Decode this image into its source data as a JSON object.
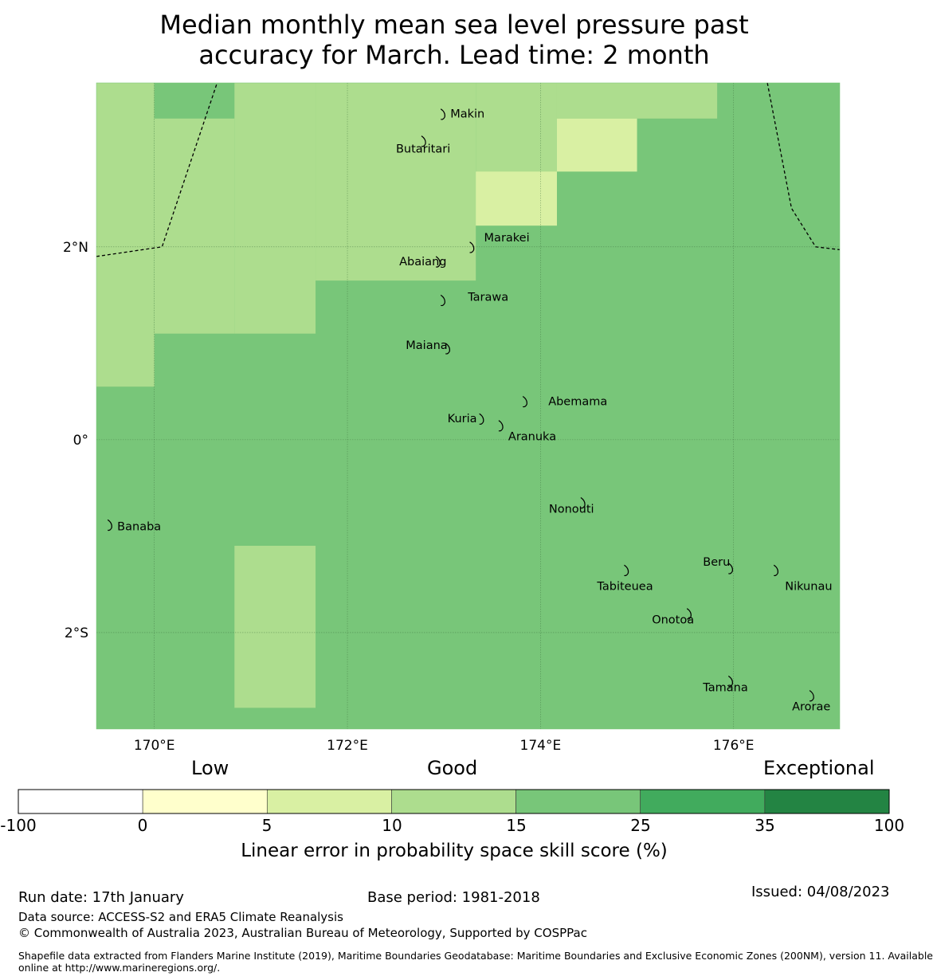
{
  "title_line1": "Median monthly mean sea level pressure past",
  "title_line2": "accuracy for March. Lead time: 2 month",
  "map": {
    "lon_range": [
      169.4,
      177.1
    ],
    "lat_range": [
      -3.0,
      3.7
    ],
    "grid_cell_size_deg": 0.833,
    "background_color": "#78c679",
    "lon_ticks": [
      {
        "value": 170,
        "label": "170°E"
      },
      {
        "value": 172,
        "label": "172°E"
      },
      {
        "value": 174,
        "label": "174°E"
      },
      {
        "value": 176,
        "label": "176°E"
      }
    ],
    "lat_ticks": [
      {
        "value": 2,
        "label": "2°N"
      },
      {
        "value": 0,
        "label": "0°"
      },
      {
        "value": -2,
        "label": "2°S"
      }
    ],
    "skill_cells": [
      {
        "lon": [
          169.4,
          170.0
        ],
        "lat": [
          0.55,
          3.7
        ],
        "category": "10-15",
        "color": "#addd8e"
      },
      {
        "lon": [
          170.0,
          170.83
        ],
        "lat": [
          3.33,
          3.7
        ],
        "category": "15-25",
        "color": "#78c679"
      },
      {
        "lon": [
          170.0,
          170.83
        ],
        "lat": [
          1.1,
          3.33
        ],
        "category": "10-15",
        "color": "#addd8e"
      },
      {
        "lon": [
          170.83,
          171.67
        ],
        "lat": [
          1.1,
          3.7
        ],
        "category": "10-15",
        "color": "#addd8e"
      },
      {
        "lon": [
          171.67,
          173.33
        ],
        "lat": [
          1.65,
          3.7
        ],
        "category": "10-15",
        "color": "#addd8e"
      },
      {
        "lon": [
          173.33,
          174.17
        ],
        "lat": [
          2.22,
          3.7
        ],
        "category": "10-15",
        "color": "#addd8e"
      },
      {
        "lon": [
          173.33,
          174.17
        ],
        "lat": [
          2.22,
          2.78
        ],
        "category": "5-10",
        "color": "#d9f0a3"
      },
      {
        "lon": [
          174.17,
          175.83
        ],
        "lat": [
          3.33,
          3.7
        ],
        "category": "10-15",
        "color": "#addd8e"
      },
      {
        "lon": [
          174.17,
          175.0
        ],
        "lat": [
          2.78,
          3.33
        ],
        "category": "5-10",
        "color": "#d9f0a3"
      },
      {
        "lon": [
          170.83,
          171.67
        ],
        "lat": [
          -2.78,
          -1.1
        ],
        "category": "10-15",
        "color": "#addd8e"
      }
    ],
    "boundaries": [
      [
        [
          169.4,
          1.9
        ],
        [
          170.08,
          2.0
        ],
        [
          170.65,
          3.7
        ]
      ],
      [
        [
          176.35,
          3.7
        ],
        [
          176.6,
          2.4
        ],
        [
          176.85,
          2.0
        ],
        [
          177.1,
          1.97
        ]
      ]
    ],
    "islands": [
      {
        "name": "Makin",
        "lon": 173.0,
        "lat": 3.38,
        "label_dx": 8,
        "label_dy": 0
      },
      {
        "name": "Butaritari",
        "lon": 172.8,
        "lat": 3.1,
        "label_dx": -36,
        "label_dy": 10
      },
      {
        "name": "Marakei",
        "lon": 173.3,
        "lat": 2.0,
        "label_dx": 14,
        "label_dy": -12
      },
      {
        "name": "Abaiang",
        "lon": 172.95,
        "lat": 1.85,
        "label_dx": -50,
        "label_dy": 0
      },
      {
        "name": "Tarawa",
        "lon": 173.0,
        "lat": 1.45,
        "label_dx": 30,
        "label_dy": -4
      },
      {
        "name": "Maiana",
        "lon": 173.05,
        "lat": 0.95,
        "label_dx": -54,
        "label_dy": -4
      },
      {
        "name": "Abemama",
        "lon": 173.85,
        "lat": 0.4,
        "label_dx": 28,
        "label_dy": 0
      },
      {
        "name": "Kuria",
        "lon": 173.4,
        "lat": 0.22,
        "label_dx": -44,
        "label_dy": 0
      },
      {
        "name": "Aranuka",
        "lon": 173.6,
        "lat": 0.15,
        "label_dx": 8,
        "label_dy": 14
      },
      {
        "name": "Nonouti",
        "lon": 174.45,
        "lat": -0.65,
        "label_dx": -44,
        "label_dy": 8
      },
      {
        "name": "Banaba",
        "lon": 169.55,
        "lat": -0.88,
        "label_dx": 8,
        "label_dy": 2
      },
      {
        "name": "Tabiteuea",
        "lon": 174.9,
        "lat": -1.35,
        "label_dx": -38,
        "label_dy": 20
      },
      {
        "name": "Beru",
        "lon": 175.98,
        "lat": -1.33,
        "label_dx": -36,
        "label_dy": -8
      },
      {
        "name": "Nikunau",
        "lon": 176.45,
        "lat": -1.35,
        "label_dx": 10,
        "label_dy": 20
      },
      {
        "name": "Onotoa",
        "lon": 175.55,
        "lat": -1.8,
        "label_dx": -48,
        "label_dy": 8
      },
      {
        "name": "Tamana",
        "lon": 175.98,
        "lat": -2.5,
        "label_dx": -36,
        "label_dy": 8
      },
      {
        "name": "Arorae",
        "lon": 176.82,
        "lat": -2.65,
        "label_dx": -26,
        "label_dy": 14
      }
    ]
  },
  "colorbar": {
    "categories": [
      "Low",
      "Good",
      "Exceptional"
    ],
    "bins": [
      {
        "from": -100,
        "to": 0,
        "color": "#ffffff"
      },
      {
        "from": 0,
        "to": 5,
        "color": "#ffffcc"
      },
      {
        "from": 5,
        "to": 10,
        "color": "#d9f0a3"
      },
      {
        "from": 10,
        "to": 15,
        "color": "#addd8e"
      },
      {
        "from": 15,
        "to": 25,
        "color": "#78c679"
      },
      {
        "from": 25,
        "to": 35,
        "color": "#41ab5d"
      },
      {
        "from": 35,
        "to": 100,
        "color": "#238443"
      }
    ],
    "tick_labels": [
      "-100",
      "0",
      "5",
      "10",
      "15",
      "25",
      "35",
      "100"
    ],
    "label": "Linear error in probability space skill score (%)"
  },
  "footer": {
    "run_date": "Run date: 17th January",
    "base_period": "Base period: 1981-2018",
    "issued": "Issued: 04/08/2023",
    "data_source": "Data source: ACCESS-S2 and ERA5 Climate Reanalysis",
    "copyright": "© Commonwealth of Australia 2023, Australian Bureau of Meteorology, Supported by COSPPac",
    "shapefile_line1": "Shapefile data extracted from Flanders Marine Institute (2019), Maritime Boundaries Geodatabase: Maritime Boundaries and Exclusive Economic Zones (200NM), version 11. Available",
    "shapefile_line2": "online at http://www.marineregions.org/."
  }
}
